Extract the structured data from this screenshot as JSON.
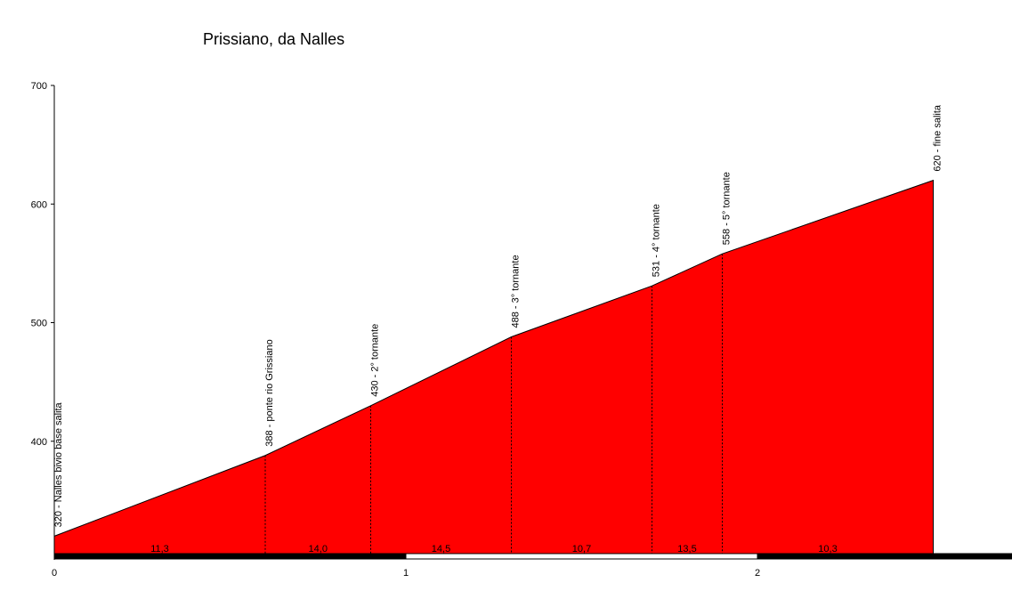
{
  "chart_data": {
    "type": "area",
    "title": "Prissiano, da Nalles",
    "xlabel": "",
    "ylabel": "",
    "xlim": [
      0,
      2.73
    ],
    "ylim": [
      300,
      700
    ],
    "fill_color": "#ff0000",
    "y_ticks": [
      400,
      500,
      600,
      700
    ],
    "x_ticks": [
      0,
      1,
      2
    ],
    "points": [
      {
        "x": 0.0,
        "y": 320,
        "label": "320 - Nalles bivio base salita"
      },
      {
        "x": 0.6,
        "y": 388,
        "label": "388 - ponte rio Grissiano"
      },
      {
        "x": 0.9,
        "y": 430,
        "label": "430 - 2° tornante"
      },
      {
        "x": 1.3,
        "y": 488,
        "label": "488 - 3° tornante"
      },
      {
        "x": 1.7,
        "y": 531,
        "label": "531 - 4° tornante"
      },
      {
        "x": 1.9,
        "y": 558,
        "label": "558 - 5° tornante"
      },
      {
        "x": 2.5,
        "y": 620,
        "label": "620 - fine salita"
      }
    ],
    "segment_grades": [
      "11,3",
      "14,0",
      "14,5",
      "10,7",
      "13,5",
      "10,3"
    ]
  }
}
